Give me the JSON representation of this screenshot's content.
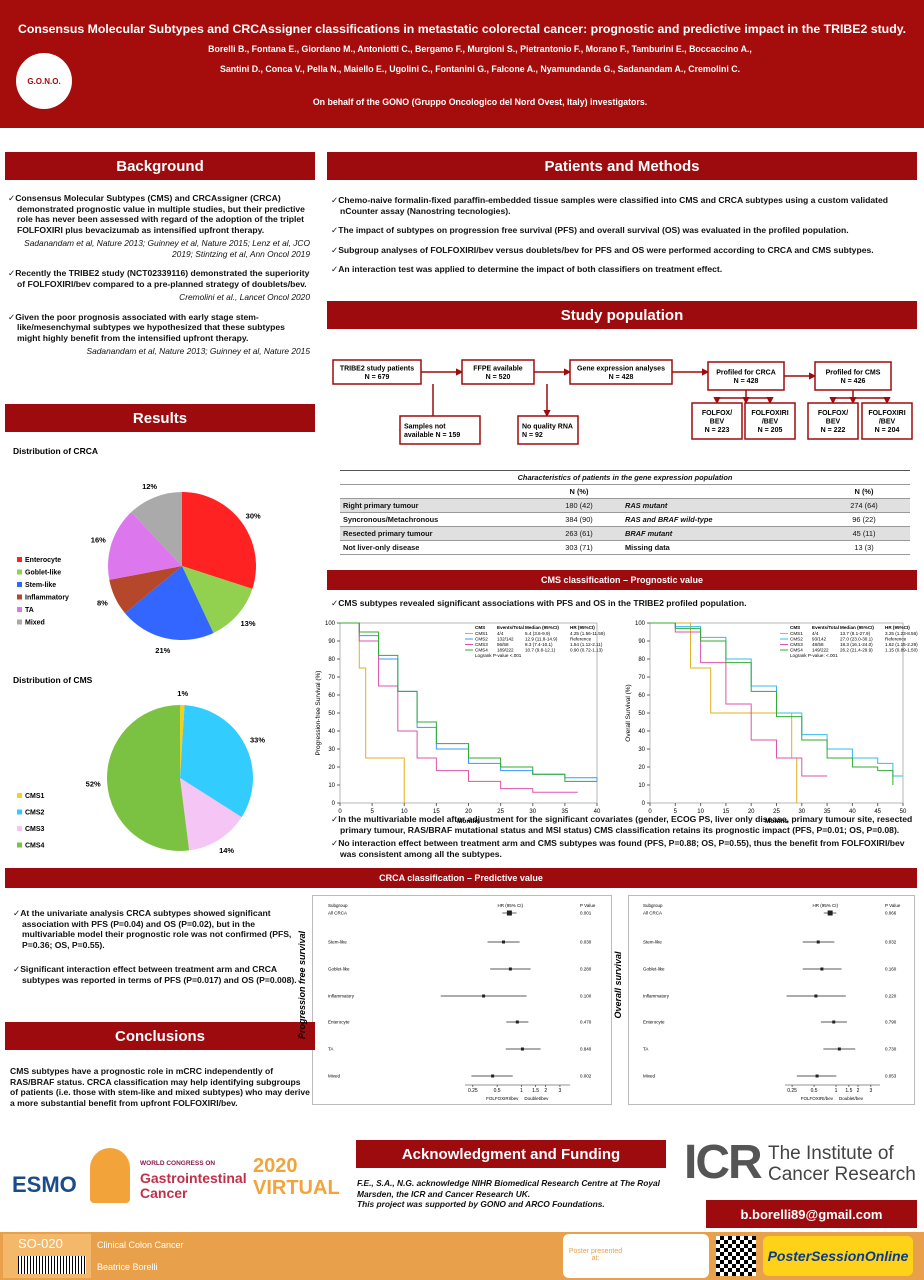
{
  "header": {
    "title": "Consensus Molecular Subtypes and CRCAssigner classifications in metastatic colorectal cancer: prognostic and predictive impact in the TRIBE2 study.",
    "authors_1": "Borelli B., Fontana E., Giordano M., Antoniotti C., Bergamo F., Murgioni S., Pietrantonio F., Morano F., Tamburini E., Boccaccino A.,",
    "authors_2": "Santini D., Conca V., Pella N., Maiello E., Ugolini C., Fontanini G., Falcone A., Nyamundanda G., Sadanandam A., Cremolini C.",
    "behalf": "On behalf of the GONO (Gruppo Oncologico del Nord Ovest, Italy) investigators.",
    "logo": "G.O.N.O."
  },
  "background": {
    "heading": "Background",
    "items": [
      {
        "text": "Consensus Molecular Subtypes (CMS) and CRCAssigner (CRCA) demonstrated prognostic value in multiple studies, but their predictive role has never been assessed with regard of the adoption of the triplet FOLFOXIRI plus bevacizumab as intensified upfront therapy.",
        "ref": "Sadanandam et al, Nature 2013; Guinney et al, Nature 2015; Lenz et al, JCO 2019; Stintzing et al, Ann Oncol 2019"
      },
      {
        "text": "Recently the TRIBE2 study (NCT02339116) demonstrated the superiority of FOLFOXIRI/bev compared to a pre-planned strategy of doublets/bev.",
        "ref": "Cremolini et al., Lancet Oncol 2020"
      },
      {
        "text": "Given the poor prognosis associated with early stage stem-like/mesenchymal subtypes we hypothesized that these subtypes might highly benefit from the intensified upfront therapy.",
        "ref": "Sadanandam et al, Nature 2013; Guinney et al, Nature 2015"
      }
    ]
  },
  "methods": {
    "heading": "Patients and Methods",
    "items": [
      "Chemo-naive formalin-fixed paraffin-embedded tissue samples were classified into CMS and CRCA subtypes using a custom validated nCounter assay (Nanostring tecnologies).",
      "The impact of subtypes on progression free survival (PFS) and overall survival (OS) was evaluated in the profiled population.",
      "Subgroup analyses of FOLFOXIRI/bev versus doublets/bev for PFS and OS were performed according to CRCA and CMS subtypes.",
      "An interaction test was applied to determine the impact of both classifiers on treatment effect."
    ]
  },
  "population": {
    "heading": "Study population",
    "flow": [
      {
        "lines": [
          "TRIBE2 study patients",
          "N = 679"
        ]
      },
      {
        "lines": [
          "FFPE available",
          "N = 520"
        ]
      },
      {
        "lines": [
          "Gene expression analyses",
          "N = 428"
        ]
      },
      {
        "lines": [
          "Profiled for CRCA",
          "N = 428"
        ]
      },
      {
        "lines": [
          "Profiled for CMS",
          "N = 426"
        ]
      },
      {
        "lines": [
          "Samples not",
          "available N = 159"
        ]
      },
      {
        "lines": [
          "No quality RNA",
          "N = 92"
        ]
      },
      {
        "lines": [
          "FOLFOX/",
          "BEV",
          "N = 223"
        ]
      },
      {
        "lines": [
          "FOLFOXIRI",
          "/BEV",
          "N = 205"
        ]
      },
      {
        "lines": [
          "FOLFOX/",
          "BEV",
          "N = 222"
        ]
      },
      {
        "lines": [
          "FOLFOXIRI",
          "/BEV",
          "N = 204"
        ]
      }
    ],
    "table": {
      "caption": "Characteristics of patients in the gene expression population",
      "n1": "N (%)",
      "n2": "N (%)",
      "rows": [
        [
          "Right primary tumour",
          "180 (42)",
          "RAS mutant",
          "274 (64)"
        ],
        [
          "Syncronous/Metachronous",
          "384 (90)",
          "RAS and BRAF wild-type",
          "96 (22)"
        ],
        [
          "Resected primary tumour",
          "263 (61)",
          "BRAF mutant",
          "45 (11)"
        ],
        [
          "Not liver-only disease",
          "303 (71)",
          "Missing data",
          "13 (3)"
        ]
      ]
    }
  },
  "results": {
    "heading": "Results"
  },
  "cms_prog": {
    "heading": "CMS classification – Prognostic value",
    "bullet": "CMS subtypes revealed significant associations with PFS and OS in the TRIBE2 profiled population.",
    "notes": [
      "In the multivariable model after adjustment for the significant covariates (gender, ECOG PS, liver only disease, primary tumour site, resected primary tumour, RAS/BRAF mutational status and MSI status) CMS classification retains its prognostic impact (PFS, P=0.01; OS, P=0.08).",
      "No interaction effect between treatment arm and CMS subtypes was found (PFS, P=0.88; OS, P=0.55), thus the benefit from FOLFOXIRI/bev was consistent among all the subtypes."
    ]
  },
  "crca_pred": {
    "heading": "CRCA classification – Predictive value",
    "bullets": [
      "At the univariate analysis CRCA subtypes showed significant association with PFS (P=0.04) and OS (P=0.02), but in the multivariable model their prognostic role was not confirmed (PFS, P=0.36; OS, P=0.55).",
      "Significant interaction effect between treatment arm and CRCA subtypes was reported in terms of PFS (P=0.017) and OS (P=0.008)."
    ]
  },
  "conclusions": {
    "heading": "Conclusions",
    "text": "CMS subtypes have a prognostic role in mCRC independently of RAS/BRAF status. CRCA classification may help identifying subgroups of patients (i.e. those with stem-like and mixed subtypes) who may derive a more substantial benefit from upfront FOLFOXIRI/bev."
  },
  "footer": {
    "ack_heading": "Acknowledgment and Funding",
    "ack_1": "F.E., S.A., N.G. acknowledge NIHR Biomedical Research Centre at The Royal Marsden, the ICR and Cancer Research UK.",
    "ack_2": "This project was supported by GONO and ARCO Foundations.",
    "email": "b.borelli89@gmail.com",
    "esmo": "ESMO",
    "congress_1": "WORLD CONGRESS ON",
    "congress_2": "Gastrointestinal",
    "congress_3": "Cancer",
    "year": "2020",
    "virtual": "VIRTUAL",
    "icr": "ICR",
    "icr_1": "The Institute of",
    "icr_2": "Cancer Research",
    "code": "SO-020",
    "category": "Clinical Colon Cancer",
    "presenter": "Beatrice Borelli",
    "presented": "Poster presented at:",
    "pso": "PosterSessionOnline"
  },
  "chart_data": [
    {
      "type": "pie",
      "title": "Distribution of CRCA",
      "categories": [
        "Enterocyte",
        "Goblet-like",
        "Stem-like",
        "Inflammatory",
        "TA",
        "Mixed"
      ],
      "values": [
        30,
        13,
        21,
        8,
        16,
        12
      ],
      "value_labels": [
        "30%",
        "13%",
        "21%",
        "8%",
        "16%",
        "12%"
      ],
      "colors": [
        "#ff2222",
        "#92d050",
        "#3366ff",
        "#b5472a",
        "#dd77ee",
        "#aaaaaa"
      ]
    },
    {
      "type": "pie",
      "title": "Distribution of CMS",
      "categories": [
        "CMS1",
        "CMS2",
        "CMS3",
        "CMS4"
      ],
      "values": [
        1,
        33,
        14,
        52
      ],
      "value_labels": [
        "1%",
        "33%",
        "14%",
        "52%"
      ],
      "colors": [
        "#f0d020",
        "#33ccff",
        "#f5c6f5",
        "#7cc242"
      ]
    },
    {
      "type": "line",
      "x_label": "Months",
      "y_label": "Progression-free Survival (%)",
      "xlim": [
        0,
        40
      ],
      "xticks": [
        0,
        5,
        10,
        15,
        20,
        25,
        30,
        35,
        40
      ],
      "ylim": [
        0,
        100
      ],
      "yticks": [
        0,
        10,
        20,
        30,
        40,
        50,
        60,
        70,
        80,
        90,
        100
      ],
      "legend_header": [
        "CMS",
        "Events/Total",
        "Median (95%CI)",
        "HR (95%CI)"
      ],
      "logrank": "Logrank P-value <.001",
      "series": [
        {
          "name": "CMS1",
          "color": "#e0b020",
          "events": "4/4",
          "median": "5.4 (3.6-9.9)",
          "hr": "4.25 (1.56-11.59)",
          "x": [
            0,
            3,
            4,
            9,
            10
          ],
          "values": [
            100,
            75,
            25,
            25,
            0
          ]
        },
        {
          "name": "CMS2",
          "color": "#3399ff",
          "events": "132/142",
          "median": "12.9 (11.8-14.9)",
          "hr": "Reference",
          "x": [
            0,
            3,
            6,
            9,
            12,
            15,
            20,
            25,
            30,
            35,
            40
          ],
          "values": [
            100,
            93,
            80,
            62,
            42,
            30,
            22,
            18,
            16,
            14,
            12
          ]
        },
        {
          "name": "CMS3",
          "color": "#dd55aa",
          "events": "56/58",
          "median": "8.3 (7.4-10.1)",
          "hr": "1.54 (1.12-2.11)",
          "x": [
            0,
            3,
            6,
            9,
            12,
            15,
            20,
            25,
            30,
            37
          ],
          "values": [
            100,
            90,
            65,
            40,
            25,
            18,
            12,
            8,
            6,
            6
          ]
        },
        {
          "name": "CMS4",
          "color": "#33aa33",
          "events": "189/222",
          "median": "10.7 (9.8-12.1)",
          "hr": "0.90 (0.72-1.13)",
          "x": [
            0,
            3,
            6,
            9,
            12,
            15,
            20,
            25,
            30,
            35,
            40
          ],
          "values": [
            100,
            95,
            82,
            62,
            45,
            33,
            25,
            20,
            16,
            12,
            12
          ]
        }
      ]
    },
    {
      "type": "line",
      "x_label": "Months",
      "y_label": "Overall Survival (%)",
      "xlim": [
        0,
        50
      ],
      "xticks": [
        0,
        5,
        10,
        15,
        20,
        25,
        30,
        35,
        40,
        45,
        50
      ],
      "ylim": [
        0,
        100
      ],
      "yticks": [
        0,
        10,
        20,
        30,
        40,
        50,
        60,
        70,
        80,
        90,
        100
      ],
      "legend_header": [
        "CMS",
        "Events/Total",
        "Median (95%CI)",
        "HR (95%CI)"
      ],
      "logrank": "Logrank P-value: <.001",
      "series": [
        {
          "name": "CMS1",
          "color": "#e0b020",
          "events": "4/4",
          "median": "13.7 (8.1-27.9)",
          "hr": "3.25 (1.23-8.56)",
          "x": [
            0,
            8,
            12,
            28,
            29
          ],
          "values": [
            100,
            75,
            50,
            25,
            0
          ]
        },
        {
          "name": "CMS2",
          "color": "#33bbee",
          "events": "93/142",
          "median": "27.0 (23.0-30.1)",
          "hr": "Reference",
          "x": [
            0,
            5,
            10,
            15,
            20,
            25,
            30,
            35,
            40,
            45,
            48,
            50
          ],
          "values": [
            100,
            98,
            92,
            80,
            65,
            50,
            38,
            30,
            25,
            22,
            15,
            15
          ]
        },
        {
          "name": "CMS3",
          "color": "#dd55aa",
          "events": "48/58",
          "median": "18.3 (16.1-24.0)",
          "hr": "1.62 (1.15-2.29)",
          "x": [
            0,
            5,
            10,
            15,
            20,
            25,
            30,
            35
          ],
          "values": [
            100,
            95,
            78,
            55,
            35,
            25,
            15,
            15
          ]
        },
        {
          "name": "CMS4",
          "color": "#33aa33",
          "events": "149/222",
          "median": "26.2 (21.4-29.9)",
          "hr": "1.15 (0.89-1.50)",
          "x": [
            0,
            5,
            10,
            15,
            20,
            25,
            30,
            35,
            40,
            45,
            48
          ],
          "values": [
            100,
            97,
            90,
            78,
            62,
            48,
            35,
            25,
            20,
            18,
            10
          ]
        }
      ]
    },
    {
      "type": "forest",
      "y_label": "Progression free survival",
      "header": [
        "Subgroup",
        "HR (95% CI)",
        "P Value"
      ],
      "xlim": [
        0.2,
        4
      ],
      "log": true,
      "xticks": [
        0.25,
        0.5,
        1,
        1.5,
        2,
        3
      ],
      "arrow_left": "FOLFOXIRI/bev",
      "arrow_right": "Doublet/bev",
      "rows": [
        {
          "name": "All CRCA",
          "hr": 0.71,
          "lo": 0.58,
          "hi": 0.87,
          "p": "0.001"
        },
        {
          "name": "Stem-like",
          "hr": 0.6,
          "lo": 0.38,
          "hi": 0.95,
          "p": "0.030"
        },
        {
          "name": "Goblet-like",
          "hr": 0.73,
          "lo": 0.41,
          "hi": 1.3,
          "p": "0.280"
        },
        {
          "name": "Inflammatory",
          "hr": 0.34,
          "lo": 0.1,
          "hi": 1.16,
          "p": "0.100"
        },
        {
          "name": "Enterocyte",
          "hr": 0.89,
          "lo": 0.65,
          "hi": 1.22,
          "p": "0.470"
        },
        {
          "name": "TA",
          "hr": 1.03,
          "lo": 0.64,
          "hi": 1.73,
          "p": "0.840"
        },
        {
          "name": "Mixed",
          "hr": 0.44,
          "lo": 0.24,
          "hi": 0.78,
          "p": "0.002"
        }
      ]
    },
    {
      "type": "forest",
      "y_label": "Overall survival",
      "header": [
        "Subgroup",
        "HR (95% CI)",
        "P Value"
      ],
      "xlim": [
        0.2,
        4
      ],
      "log": true,
      "xticks": [
        0.25,
        0.5,
        1,
        1.5,
        2,
        3
      ],
      "arrow_left": "FOLFOXIRI/bev",
      "arrow_right": "Doublet/bev",
      "rows": [
        {
          "name": "All CRCA",
          "hr": 0.83,
          "lo": 0.68,
          "hi": 1.01,
          "p": "0.066"
        },
        {
          "name": "Stem-like",
          "hr": 0.57,
          "lo": 0.35,
          "hi": 0.95,
          "p": "0.032"
        },
        {
          "name": "Goblet-like",
          "hr": 0.64,
          "lo": 0.35,
          "hi": 1.19,
          "p": "0.160"
        },
        {
          "name": "Inflammatory",
          "hr": 0.53,
          "lo": 0.21,
          "hi": 1.36,
          "p": "0.220"
        },
        {
          "name": "Enterocyte",
          "hr": 0.93,
          "lo": 0.62,
          "hi": 1.41,
          "p": "0.790"
        },
        {
          "name": "TA",
          "hr": 1.11,
          "lo": 0.67,
          "hi": 1.83,
          "p": "0.730"
        },
        {
          "name": "Mixed",
          "hr": 0.55,
          "lo": 0.29,
          "hi": 1.01,
          "p": "0.053"
        }
      ]
    }
  ]
}
